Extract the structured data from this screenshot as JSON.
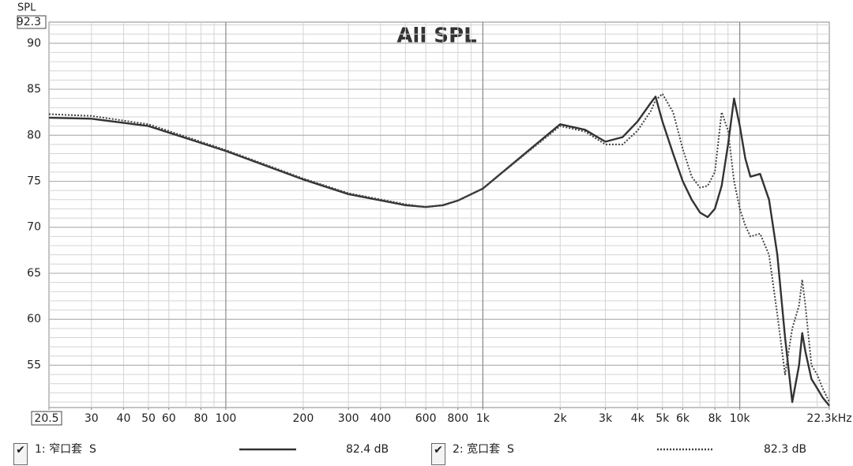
{
  "chart_data": {
    "type": "line",
    "title": "All SPL",
    "y_label": "SPL",
    "log_x": true,
    "grid": true,
    "xlim": [
      20.5,
      22300
    ],
    "ylim": [
      50.4,
      92.3
    ],
    "xticks": [
      20.5,
      30,
      40,
      50,
      60,
      80,
      100,
      200,
      300,
      400,
      600,
      800,
      {
        "value": 1000,
        "label": "1k"
      },
      {
        "value": 2000,
        "label": "2k"
      },
      {
        "value": 3000,
        "label": "3k"
      },
      {
        "value": 4000,
        "label": "4k"
      },
      {
        "value": 5000,
        "label": "5k"
      },
      {
        "value": 6000,
        "label": "6k"
      },
      {
        "value": 8000,
        "label": "8k"
      },
      {
        "value": 10000,
        "label": "10k"
      },
      {
        "value": 22300,
        "label": "22.3kHz"
      }
    ],
    "yticks": [
      55,
      60,
      65,
      70,
      75,
      80,
      85,
      90,
      92.3
    ],
    "x_major_gridlines": [
      100,
      1000,
      10000
    ],
    "x": [
      20.5,
      30,
      50,
      100,
      200,
      300,
      500,
      600,
      700,
      800,
      1000,
      1500,
      2000,
      2500,
      3000,
      3500,
      4000,
      4500,
      4700,
      5000,
      5500,
      6000,
      6500,
      7000,
      7500,
      8000,
      8500,
      9000,
      9500,
      10000,
      10500,
      11000,
      12000,
      13000,
      14000,
      15000,
      16000,
      17000,
      17500,
      18000,
      19000,
      20000,
      21000,
      22300
    ],
    "series": [
      {
        "name": "1: 窄口套  S",
        "color": "#333333",
        "style": "solid",
        "level_label": "82.4 dB",
        "values": [
          81.9,
          81.8,
          81.0,
          78.3,
          75.2,
          73.6,
          72.4,
          72.2,
          72.4,
          72.9,
          74.2,
          78.3,
          81.2,
          80.6,
          79.3,
          79.8,
          81.5,
          83.5,
          84.2,
          81.5,
          78.0,
          75.0,
          73.0,
          71.6,
          71.1,
          72.0,
          74.5,
          79.0,
          84.0,
          81.0,
          77.5,
          75.5,
          75.8,
          73.0,
          67.0,
          58.0,
          51.0,
          55.0,
          58.5,
          56.5,
          53.5,
          52.5,
          51.5,
          50.6
        ]
      },
      {
        "name": "2: 宽口套  S",
        "color": "#444444",
        "style": "dotted",
        "level_label": "82.3 dB",
        "values": [
          82.3,
          82.1,
          81.2,
          78.4,
          75.3,
          73.7,
          72.5,
          72.2,
          72.4,
          72.9,
          74.2,
          78.2,
          81.0,
          80.4,
          79.0,
          79.0,
          80.5,
          82.6,
          83.8,
          84.5,
          82.5,
          78.5,
          75.5,
          74.3,
          74.5,
          76.0,
          82.5,
          80.5,
          75.0,
          72.0,
          70.2,
          69.0,
          69.3,
          67.0,
          60.5,
          54.0,
          59.0,
          61.5,
          64.3,
          61.5,
          55.0,
          54.0,
          52.5,
          51.0
        ]
      }
    ]
  }
}
